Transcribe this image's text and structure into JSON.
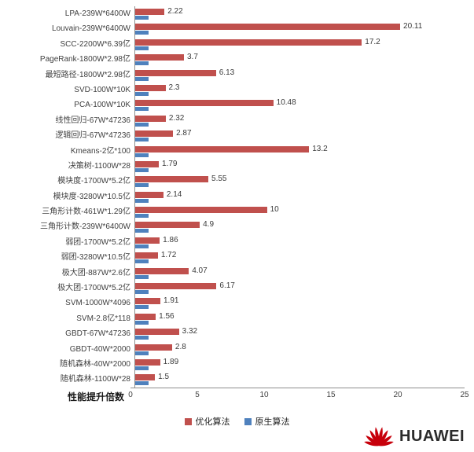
{
  "chart_data": {
    "type": "bar",
    "orientation": "horizontal",
    "xlabel": "性能提升倍数",
    "xlim": [
      0,
      25
    ],
    "xticks": [
      0,
      5,
      10,
      15,
      20,
      25
    ],
    "legend_position": "bottom",
    "grid": false,
    "categories": [
      "LPA-239W*6400W",
      "Louvain-239W*6400W",
      "SCC-2200W*6.39亿",
      "PageRank-1800W*2.98亿",
      "最短路径-1800W*2.98亿",
      "SVD-100W*10K",
      "PCA-100W*10K",
      "线性回归-67W*47236",
      "逻辑回归-67W*47236",
      "Kmeans-2亿*100",
      "决策树-1100W*28",
      "模块度-1700W*5.2亿",
      "模块度-3280W*10.5亿",
      "三角形计数-461W*1.29亿",
      "三角形计数-239W*6400W",
      "弱团-1700W*5.2亿",
      "弱团-3280W*10.5亿",
      "极大团-887W*2.6亿",
      "极大团-1700W*5.2亿",
      "SVM-1000W*4096",
      "SVM-2.8亿*118",
      "GBDT-67W*47236",
      "GBDT-40W*2000",
      "随机森林-40W*2000",
      "随机森林-1100W*28"
    ],
    "series": [
      {
        "name": "优化算法",
        "color": "#c0504d",
        "values": [
          2.22,
          20.11,
          17.2,
          3.7,
          6.13,
          2.3,
          10.48,
          2.32,
          2.87,
          13.2,
          1.79,
          5.55,
          2.14,
          10,
          4.9,
          1.86,
          1.72,
          4.07,
          6.17,
          1.91,
          1.56,
          3.32,
          2.8,
          1.89,
          1.5
        ]
      },
      {
        "name": "原生算法",
        "color": "#4f81bd",
        "values": [
          1,
          1,
          1,
          1,
          1,
          1,
          1,
          1,
          1,
          1,
          1,
          1,
          1,
          1,
          1,
          1,
          1,
          1,
          1,
          1,
          1,
          1,
          1,
          1,
          1
        ]
      }
    ]
  },
  "branding": {
    "name": "HUAWEI",
    "logo_color": "#c7000b"
  }
}
